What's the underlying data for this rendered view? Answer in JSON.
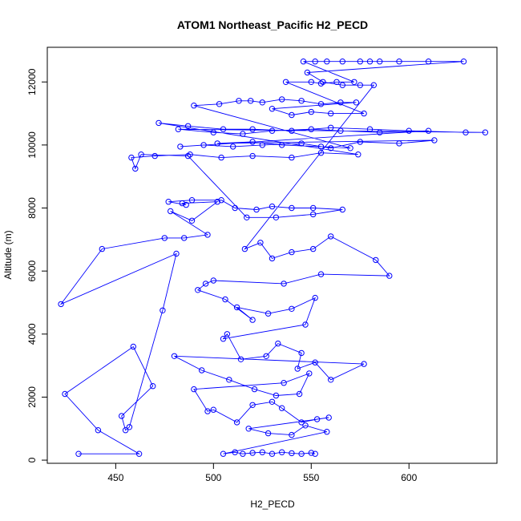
{
  "chart_data": {
    "type": "scatter",
    "title": "ATOM1 Northeast_Pacific H2_PECD",
    "xlabel": "H2_PECD",
    "ylabel": "Altitude (m)",
    "xlim": [
      415,
      645
    ],
    "ylim": [
      -100,
      13100
    ],
    "xticks": [
      450,
      500,
      550,
      600
    ],
    "yticks": [
      0,
      2000,
      4000,
      6000,
      8000,
      10000,
      12000
    ],
    "grid": false,
    "legend": "none",
    "connected": true,
    "color": "#0000ff",
    "series": [
      {
        "points": [
          [
            431,
            200
          ],
          [
            462,
            200
          ],
          [
            441,
            950
          ],
          [
            424,
            2100
          ],
          [
            459,
            3600
          ],
          [
            469,
            2350
          ],
          [
            453,
            1400
          ],
          [
            455,
            950
          ],
          [
            457,
            1050
          ],
          [
            474,
            4750
          ],
          [
            481,
            6550
          ],
          [
            422,
            4950
          ],
          [
            443,
            6700
          ],
          [
            475,
            7050
          ],
          [
            485,
            7050
          ],
          [
            497,
            7150
          ],
          [
            478,
            7900
          ],
          [
            489,
            7600
          ],
          [
            502,
            8200
          ],
          [
            484,
            8150
          ],
          [
            486,
            8100
          ],
          [
            477,
            8200
          ],
          [
            489,
            8250
          ],
          [
            504,
            8250
          ],
          [
            511,
            8000
          ],
          [
            522,
            7950
          ],
          [
            530,
            8050
          ],
          [
            540,
            8000
          ],
          [
            551,
            8000
          ],
          [
            566,
            7950
          ],
          [
            551,
            7800
          ],
          [
            532,
            7700
          ],
          [
            517,
            7700
          ],
          [
            487,
            9650
          ],
          [
            463,
            9700
          ],
          [
            460,
            9250
          ],
          [
            458,
            9600
          ],
          [
            470,
            9650
          ],
          [
            488,
            9700
          ],
          [
            504,
            9600
          ],
          [
            520,
            9650
          ],
          [
            540,
            9600
          ],
          [
            555,
            9750
          ],
          [
            574,
            9700
          ],
          [
            472,
            10700
          ],
          [
            487,
            10600
          ],
          [
            505,
            10500
          ],
          [
            520,
            10500
          ],
          [
            540,
            10450
          ],
          [
            560,
            10550
          ],
          [
            580,
            10500
          ],
          [
            600,
            10450
          ],
          [
            629,
            10400
          ],
          [
            639,
            10400
          ],
          [
            482,
            10500
          ],
          [
            500,
            10400
          ],
          [
            515,
            10350
          ],
          [
            530,
            10450
          ],
          [
            550,
            10500
          ],
          [
            565,
            10450
          ],
          [
            585,
            10400
          ],
          [
            610,
            10450
          ],
          [
            483,
            9950
          ],
          [
            495,
            10000
          ],
          [
            510,
            9950
          ],
          [
            525,
            10000
          ],
          [
            545,
            10050
          ],
          [
            560,
            9900
          ],
          [
            575,
            10100
          ],
          [
            595,
            10050
          ],
          [
            613,
            10150
          ],
          [
            502,
            10050
          ],
          [
            520,
            10100
          ],
          [
            535,
            10000
          ],
          [
            555,
            9950
          ],
          [
            570,
            9900
          ],
          [
            490,
            11250
          ],
          [
            503,
            11300
          ],
          [
            513,
            11400
          ],
          [
            519,
            11400
          ],
          [
            525,
            11350
          ],
          [
            535,
            11450
          ],
          [
            545,
            11400
          ],
          [
            555,
            11300
          ],
          [
            565,
            11350
          ],
          [
            573,
            11350
          ],
          [
            530,
            11150
          ],
          [
            540,
            10950
          ],
          [
            550,
            11050
          ],
          [
            560,
            11000
          ],
          [
            577,
            11000
          ],
          [
            537,
            12000
          ],
          [
            550,
            12000
          ],
          [
            555,
            11950
          ],
          [
            563,
            12000
          ],
          [
            572,
            12000
          ],
          [
            546,
            12650
          ],
          [
            552,
            12650
          ],
          [
            558,
            12650
          ],
          [
            566,
            12650
          ],
          [
            575,
            12650
          ],
          [
            580,
            12650
          ],
          [
            585,
            12650
          ],
          [
            595,
            12650
          ],
          [
            610,
            12650
          ],
          [
            628,
            12650
          ],
          [
            548,
            12300
          ],
          [
            556,
            12000
          ],
          [
            566,
            11900
          ],
          [
            575,
            11900
          ],
          [
            582,
            11900
          ],
          [
            516,
            6700
          ],
          [
            524,
            6900
          ],
          [
            530,
            6400
          ],
          [
            540,
            6600
          ],
          [
            551,
            6700
          ],
          [
            560,
            7100
          ],
          [
            583,
            6350
          ],
          [
            590,
            5850
          ],
          [
            555,
            5900
          ],
          [
            536,
            5600
          ],
          [
            500,
            5700
          ],
          [
            496,
            5600
          ],
          [
            492,
            5400
          ],
          [
            506,
            5100
          ],
          [
            520,
            4450
          ],
          [
            512,
            4850
          ],
          [
            528,
            4650
          ],
          [
            540,
            4800
          ],
          [
            552,
            5150
          ],
          [
            547,
            4300
          ],
          [
            505,
            3850
          ],
          [
            507,
            4000
          ],
          [
            514,
            3200
          ],
          [
            527,
            3300
          ],
          [
            533,
            3700
          ],
          [
            545,
            3400
          ],
          [
            543,
            2900
          ],
          [
            552,
            3100
          ],
          [
            560,
            2550
          ],
          [
            577,
            3050
          ],
          [
            480,
            3300
          ],
          [
            494,
            2850
          ],
          [
            508,
            2550
          ],
          [
            521,
            2250
          ],
          [
            532,
            2050
          ],
          [
            544,
            2100
          ],
          [
            549,
            2750
          ],
          [
            536,
            2450
          ],
          [
            490,
            2250
          ],
          [
            497,
            1550
          ],
          [
            500,
            1600
          ],
          [
            512,
            1200
          ],
          [
            520,
            1750
          ],
          [
            530,
            1850
          ],
          [
            535,
            1650
          ],
          [
            545,
            1200
          ],
          [
            553,
            1300
          ],
          [
            559,
            1350
          ],
          [
            518,
            1000
          ],
          [
            528,
            850
          ],
          [
            540,
            800
          ],
          [
            547,
            1100
          ],
          [
            558,
            900
          ],
          [
            505,
            200
          ],
          [
            511,
            250
          ],
          [
            515,
            200
          ],
          [
            520,
            230
          ],
          [
            525,
            250
          ],
          [
            530,
            200
          ],
          [
            535,
            250
          ],
          [
            540,
            220
          ],
          [
            545,
            200
          ],
          [
            550,
            230
          ],
          [
            552,
            200
          ]
        ]
      }
    ]
  }
}
